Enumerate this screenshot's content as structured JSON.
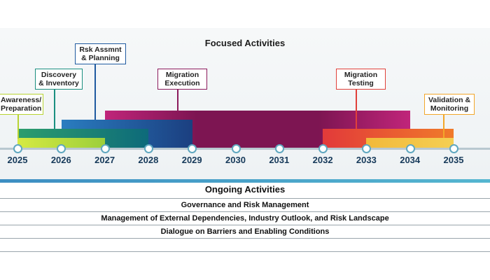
{
  "focused": {
    "title": "Focused Activities",
    "callouts": [
      {
        "id": "awareness",
        "lines": [
          "Awareness/",
          "Preparation"
        ],
        "color": "#b8d432"
      },
      {
        "id": "discovery",
        "lines": [
          "Discovery",
          "& Inventory"
        ],
        "color": "#1a8f80"
      },
      {
        "id": "risk",
        "lines": [
          "Rsk Assmnt",
          "& Planning"
        ],
        "color": "#1f5aa0"
      },
      {
        "id": "migration-exec",
        "lines": [
          "Migration",
          "Execution"
        ],
        "color": "#8b1a5c"
      },
      {
        "id": "migration-test",
        "lines": [
          "Migration",
          "Testing"
        ],
        "color": "#e0403a"
      },
      {
        "id": "validation",
        "lines": [
          "Validation &",
          "Monitoring"
        ],
        "color": "#f2a72a"
      }
    ]
  },
  "timeline": {
    "years": [
      "2025",
      "2026",
      "2027",
      "2028",
      "2029",
      "2030",
      "2031",
      "2032",
      "2033",
      "2034",
      "2035"
    ]
  },
  "ongoing": {
    "title": "Ongoing Activities",
    "rows": [
      "Governance and Risk Management",
      "Management of External Dependencies, Industry Outlook, and Risk Landscape",
      "Dialogue on Barriers and Enabling Conditions"
    ]
  }
}
